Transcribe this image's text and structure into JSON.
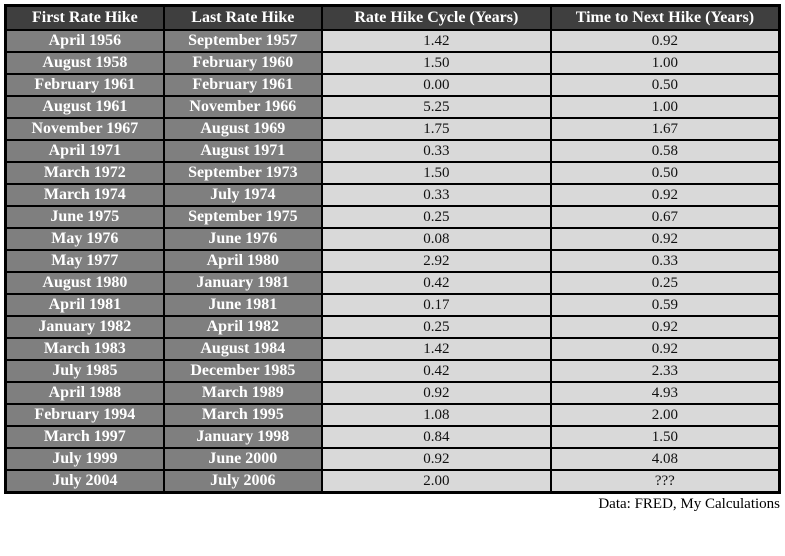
{
  "chart_data": {
    "type": "table",
    "title": "",
    "columns": [
      "First Rate Hike",
      "Last Rate Hike",
      "Rate Hike Cycle (Years)",
      "Time to Next Hike (Years)"
    ],
    "rows": [
      [
        "April 1956",
        "September 1957",
        "1.42",
        "0.92"
      ],
      [
        "August 1958",
        "February 1960",
        "1.50",
        "1.00"
      ],
      [
        "February 1961",
        "February 1961",
        "0.00",
        "0.50"
      ],
      [
        "August 1961",
        "November 1966",
        "5.25",
        "1.00"
      ],
      [
        "November 1967",
        "August 1969",
        "1.75",
        "1.67"
      ],
      [
        "April 1971",
        "August 1971",
        "0.33",
        "0.58"
      ],
      [
        "March 1972",
        "September 1973",
        "1.50",
        "0.50"
      ],
      [
        "March 1974",
        "July 1974",
        "0.33",
        "0.92"
      ],
      [
        "June 1975",
        "September 1975",
        "0.25",
        "0.67"
      ],
      [
        "May 1976",
        "June 1976",
        "0.08",
        "0.92"
      ],
      [
        "May 1977",
        "April 1980",
        "2.92",
        "0.33"
      ],
      [
        "August 1980",
        "January 1981",
        "0.42",
        "0.25"
      ],
      [
        "April 1981",
        "June 1981",
        "0.17",
        "0.59"
      ],
      [
        "January 1982",
        "April 1982",
        "0.25",
        "0.92"
      ],
      [
        "March 1983",
        "August 1984",
        "1.42",
        "0.92"
      ],
      [
        "July 1985",
        "December 1985",
        "0.42",
        "2.33"
      ],
      [
        "April 1988",
        "March 1989",
        "0.92",
        "4.93"
      ],
      [
        "February 1994",
        "March 1995",
        "1.08",
        "2.00"
      ],
      [
        "March 1997",
        "January 1998",
        "0.84",
        "1.50"
      ],
      [
        "July 1999",
        "June 2000",
        "0.92",
        "4.08"
      ],
      [
        "July 2004",
        "July 2006",
        "2.00",
        "???"
      ]
    ]
  },
  "footer": {
    "credit": "Data: FRED, My Calculations"
  },
  "colors": {
    "header_bg": "#3f3f3f",
    "date_cell_bg": "#7f7f7f",
    "value_cell_bg": "#d9d9d9",
    "border": "#000000",
    "header_text": "#ffffff",
    "value_text": "#111111"
  }
}
